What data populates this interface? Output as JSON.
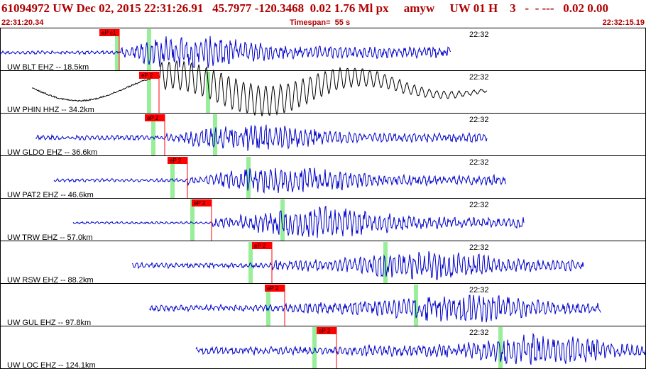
{
  "header": {
    "title": "61094972 UW Dec 02, 2015 22:31:26.91   45.7977 -120.3468  0.02 1.76 Ml px     amyw     UW 01 H    3   -  - ---   0.02 0.00",
    "start_time": "22:31:20.34",
    "timespan": "Timespan=  55 s",
    "end_time": "22:32:15.19"
  },
  "colors": {
    "header_text": "#b00000",
    "trace_primary": "#0000cc",
    "trace_selected": "#000000",
    "pick": "#ff0000",
    "marker": "#99ee99"
  },
  "traces": [
    {
      "label": "UW BLT EHZ -- 18.5km",
      "time_tick": "22:32",
      "pick": "eP c1",
      "color": "#0000cc"
    },
    {
      "label": "UW PHIN HHZ -- 34.2km",
      "time_tick": "22:32",
      "pick": "eP 2",
      "color": "#000000"
    },
    {
      "label": "UW GLDO EHZ -- 36.6km",
      "time_tick": "22:32",
      "pick": "eP 2",
      "color": "#0000cc"
    },
    {
      "label": "UW PAT2 EHZ -- 46.6km",
      "time_tick": "22:32",
      "pick": "eP 2",
      "color": "#0000cc"
    },
    {
      "label": "UW TRW EHZ -- 57.0km",
      "time_tick": "22:32",
      "pick": "eP 2",
      "color": "#0000cc"
    },
    {
      "label": "UW RSW EHZ -- 88.2km",
      "time_tick": "22:32",
      "pick": "eP 2",
      "color": "#0000cc"
    },
    {
      "label": "UW GUL EHZ -- 97.8km",
      "time_tick": "22:32",
      "pick": "eP 2",
      "color": "#0000cc"
    },
    {
      "label": "UW LOC EHZ -- 124.1km",
      "time_tick": "22:32",
      "pick": "eP 2",
      "color": "#0000cc"
    }
  ]
}
